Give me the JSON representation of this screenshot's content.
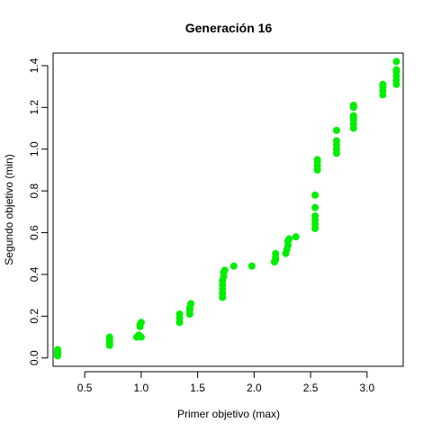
{
  "chart_data": {
    "type": "scatter",
    "title": "Generación 16",
    "xlabel": "Primer objetivo (max)",
    "ylabel": "Segundo objetivo (min)",
    "xlim": [
      0.22,
      3.32
    ],
    "ylim": [
      -0.04,
      1.46
    ],
    "xticks": [
      0.5,
      1.0,
      1.5,
      2.0,
      2.5,
      3.0
    ],
    "xtick_labels": [
      "0.5",
      "1.0",
      "1.5",
      "2.0",
      "2.5",
      "3.0"
    ],
    "yticks": [
      0.0,
      0.2,
      0.4,
      0.6,
      0.8,
      1.0,
      1.2,
      1.4
    ],
    "ytick_labels": [
      "0.0",
      "0.2",
      "0.4",
      "0.6",
      "0.8",
      "1.0",
      "1.2",
      "1.4"
    ],
    "grid": false,
    "point_color": "#00ee00",
    "series": [
      {
        "points": [
          [
            0.26,
            0.01
          ],
          [
            0.26,
            0.02
          ],
          [
            0.26,
            0.03
          ],
          [
            0.26,
            0.04
          ],
          [
            0.72,
            0.06
          ],
          [
            0.72,
            0.07
          ],
          [
            0.72,
            0.08
          ],
          [
            0.72,
            0.09
          ],
          [
            0.72,
            0.1
          ],
          [
            0.96,
            0.1
          ],
          [
            0.98,
            0.11
          ],
          [
            1.0,
            0.1
          ],
          [
            0.99,
            0.15
          ],
          [
            0.99,
            0.16
          ],
          [
            1.0,
            0.17
          ],
          [
            1.34,
            0.17
          ],
          [
            1.34,
            0.19
          ],
          [
            1.34,
            0.21
          ],
          [
            1.43,
            0.21
          ],
          [
            1.43,
            0.23
          ],
          [
            1.43,
            0.24
          ],
          [
            1.44,
            0.26
          ],
          [
            1.72,
            0.29
          ],
          [
            1.72,
            0.31
          ],
          [
            1.72,
            0.33
          ],
          [
            1.72,
            0.35
          ],
          [
            1.72,
            0.37
          ],
          [
            1.73,
            0.39
          ],
          [
            1.73,
            0.41
          ],
          [
            1.74,
            0.42
          ],
          [
            1.82,
            0.44
          ],
          [
            1.98,
            0.44
          ],
          [
            2.18,
            0.46
          ],
          [
            2.19,
            0.47
          ],
          [
            2.19,
            0.48
          ],
          [
            2.19,
            0.5
          ],
          [
            2.28,
            0.5
          ],
          [
            2.29,
            0.52
          ],
          [
            2.3,
            0.54
          ],
          [
            2.3,
            0.56
          ],
          [
            2.31,
            0.57
          ],
          [
            2.37,
            0.58
          ],
          [
            2.54,
            0.62
          ],
          [
            2.54,
            0.64
          ],
          [
            2.54,
            0.66
          ],
          [
            2.54,
            0.68
          ],
          [
            2.54,
            0.72
          ],
          [
            2.54,
            0.78
          ],
          [
            2.56,
            0.9
          ],
          [
            2.56,
            0.92
          ],
          [
            2.56,
            0.94
          ],
          [
            2.56,
            0.95
          ],
          [
            2.73,
            0.98
          ],
          [
            2.73,
            1.0
          ],
          [
            2.73,
            1.02
          ],
          [
            2.73,
            1.04
          ],
          [
            2.73,
            1.09
          ],
          [
            2.88,
            1.1
          ],
          [
            2.88,
            1.12
          ],
          [
            2.88,
            1.14
          ],
          [
            2.88,
            1.15
          ],
          [
            2.88,
            1.16
          ],
          [
            2.88,
            1.2
          ],
          [
            2.88,
            1.21
          ],
          [
            3.14,
            1.26
          ],
          [
            3.14,
            1.28
          ],
          [
            3.14,
            1.3
          ],
          [
            3.14,
            1.31
          ],
          [
            3.26,
            1.31
          ],
          [
            3.26,
            1.33
          ],
          [
            3.26,
            1.35
          ],
          [
            3.26,
            1.37
          ],
          [
            3.26,
            1.38
          ],
          [
            3.26,
            1.42
          ]
        ]
      }
    ]
  }
}
